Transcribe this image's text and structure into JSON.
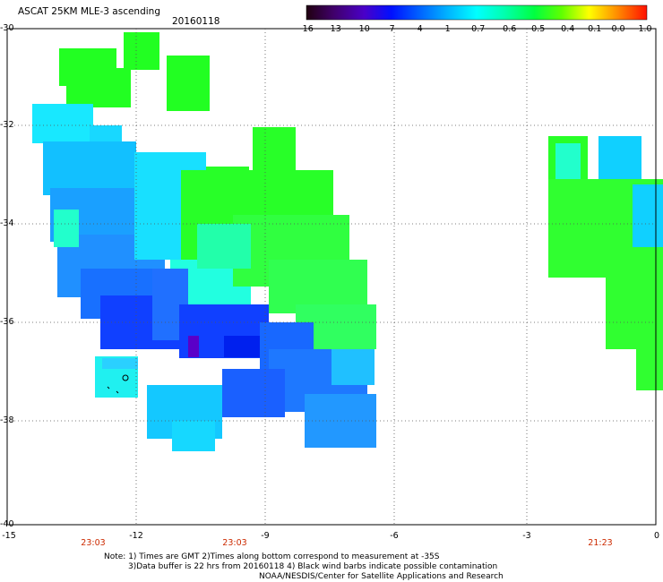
{
  "header": {
    "title": "ASCAT 25KM MLE-3 ascending",
    "date": "20160118"
  },
  "colorbar": {
    "labels": [
      "-16",
      "-13",
      "-10",
      "-7",
      "-4",
      "-1",
      "-0.7",
      "-0.6",
      "-0.5",
      "-0.4",
      "-0.1",
      "0.0",
      "1.0"
    ],
    "colors": [
      "#2a0010",
      "#4a007a",
      "#3a00d8",
      "#0018ff",
      "#0070ff",
      "#00c8ff",
      "#00fff0",
      "#00ffa0",
      "#00ff40",
      "#a0ff00",
      "#ffff00",
      "#ff8000",
      "#ff1000"
    ]
  },
  "map": {
    "lat_labels": [
      "-30",
      "-32",
      "-34",
      "-36",
      "-38",
      "-40"
    ],
    "lon_labels": [
      "-15",
      "-12",
      "-9",
      "-6",
      "-3",
      "0"
    ],
    "time_labels": [
      "23:03",
      "23:03",
      "21:23"
    ]
  },
  "footer": {
    "line1": "Note: 1) Times are GMT 2)Times along bottom correspond to measurement at -35S",
    "line2": "3)Data buffer is 22 hrs from 20160118 4) Black wind barbs indicate possible contamination",
    "line3": "NOAA/NESDIS/Center for Satellite Applications and Research"
  }
}
